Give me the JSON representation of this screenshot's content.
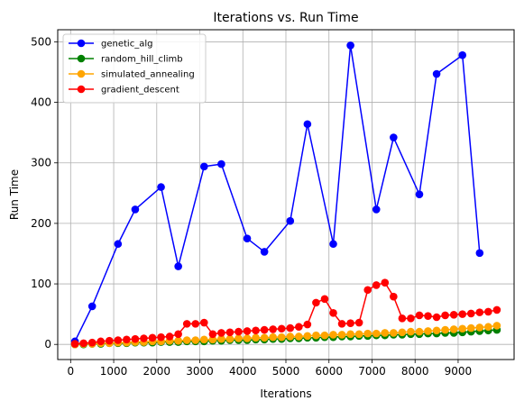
{
  "chart_data": {
    "type": "line",
    "title": "Iterations vs. Run Time",
    "xlabel": "Iterations",
    "ylabel": "Run Time",
    "xlim": [
      -300,
      10300
    ],
    "ylim": [
      -25,
      520
    ],
    "xticks": [
      0,
      1000,
      2000,
      3000,
      4000,
      5000,
      6000,
      7000,
      8000,
      9000
    ],
    "yticks": [
      0,
      100,
      200,
      300,
      400,
      500
    ],
    "grid": true,
    "legend_position": "top-left",
    "series": [
      {
        "name": "genetic_alg",
        "color": "#0000ff",
        "x": [
          100,
          500,
          1100,
          1500,
          2100,
          2500,
          3100,
          3500,
          4100,
          4500,
          5100,
          5500,
          6100,
          6500,
          7100,
          7500,
          8100,
          8500,
          9100,
          9500
        ],
        "y": [
          5,
          63,
          166,
          223,
          260,
          129,
          294,
          298,
          175,
          153,
          204,
          364,
          166,
          494,
          223,
          342,
          248,
          447,
          478,
          151
        ]
      },
      {
        "name": "random_hill_climb",
        "color": "#008000",
        "x": [
          100,
          300,
          500,
          700,
          900,
          1100,
          1300,
          1500,
          1700,
          1900,
          2100,
          2300,
          2500,
          2700,
          2900,
          3100,
          3300,
          3500,
          3700,
          3900,
          4100,
          4300,
          4500,
          4700,
          4900,
          5100,
          5300,
          5500,
          5700,
          5900,
          6100,
          6300,
          6500,
          6700,
          6900,
          7100,
          7300,
          7500,
          7700,
          7900,
          8100,
          8300,
          8500,
          8700,
          8900,
          9100,
          9300,
          9500,
          9700,
          9900
        ],
        "y": [
          0,
          0,
          1,
          1,
          2,
          2,
          2,
          3,
          3,
          3,
          4,
          4,
          4,
          5,
          5,
          5,
          6,
          6,
          7,
          7,
          7,
          8,
          8,
          9,
          9,
          10,
          10,
          11,
          11,
          12,
          12,
          13,
          13,
          14,
          14,
          15,
          15,
          16,
          16,
          17,
          17,
          18,
          18,
          19,
          19,
          20,
          21,
          22,
          23,
          24
        ]
      },
      {
        "name": "simulated_annealing",
        "color": "#ffa500",
        "x": [
          100,
          300,
          500,
          700,
          900,
          1100,
          1300,
          1500,
          1700,
          1900,
          2100,
          2300,
          2500,
          2700,
          2900,
          3100,
          3300,
          3500,
          3700,
          3900,
          4100,
          4300,
          4500,
          4700,
          4900,
          5100,
          5300,
          5500,
          5700,
          5900,
          6100,
          6300,
          6500,
          6700,
          6900,
          7100,
          7300,
          7500,
          7700,
          7900,
          8100,
          8300,
          8500,
          8700,
          8900,
          9100,
          9300,
          9500,
          9700,
          9900
        ],
        "y": [
          0,
          1,
          1,
          2,
          2,
          3,
          3,
          4,
          4,
          5,
          5,
          6,
          6,
          7,
          7,
          8,
          8,
          9,
          9,
          10,
          10,
          11,
          11,
          12,
          12,
          13,
          13,
          14,
          15,
          15,
          16,
          16,
          17,
          17,
          18,
          18,
          19,
          19,
          20,
          21,
          21,
          22,
          23,
          24,
          25,
          26,
          27,
          28,
          29,
          31
        ]
      },
      {
        "name": "gradient_descent",
        "color": "#ff0000",
        "x": [
          100,
          300,
          500,
          700,
          900,
          1100,
          1300,
          1500,
          1700,
          1900,
          2100,
          2300,
          2500,
          2700,
          2900,
          3100,
          3300,
          3500,
          3700,
          3900,
          4100,
          4300,
          4500,
          4700,
          4900,
          5100,
          5300,
          5500,
          5700,
          5900,
          6100,
          6300,
          6500,
          6700,
          6900,
          7100,
          7300,
          7500,
          7700,
          7900,
          8100,
          8300,
          8500,
          8700,
          8900,
          9100,
          9300,
          9500,
          9700,
          9900
        ],
        "y": [
          1,
          2,
          3,
          5,
          6,
          7,
          8,
          9,
          10,
          11,
          12,
          13,
          17,
          34,
          34,
          36,
          17,
          19,
          20,
          21,
          22,
          23,
          24,
          25,
          26,
          27,
          29,
          33,
          69,
          75,
          52,
          34,
          35,
          36,
          90,
          98,
          102,
          79,
          43,
          43,
          48,
          47,
          45,
          48,
          49,
          50,
          51,
          53,
          54,
          57
        ]
      }
    ]
  }
}
